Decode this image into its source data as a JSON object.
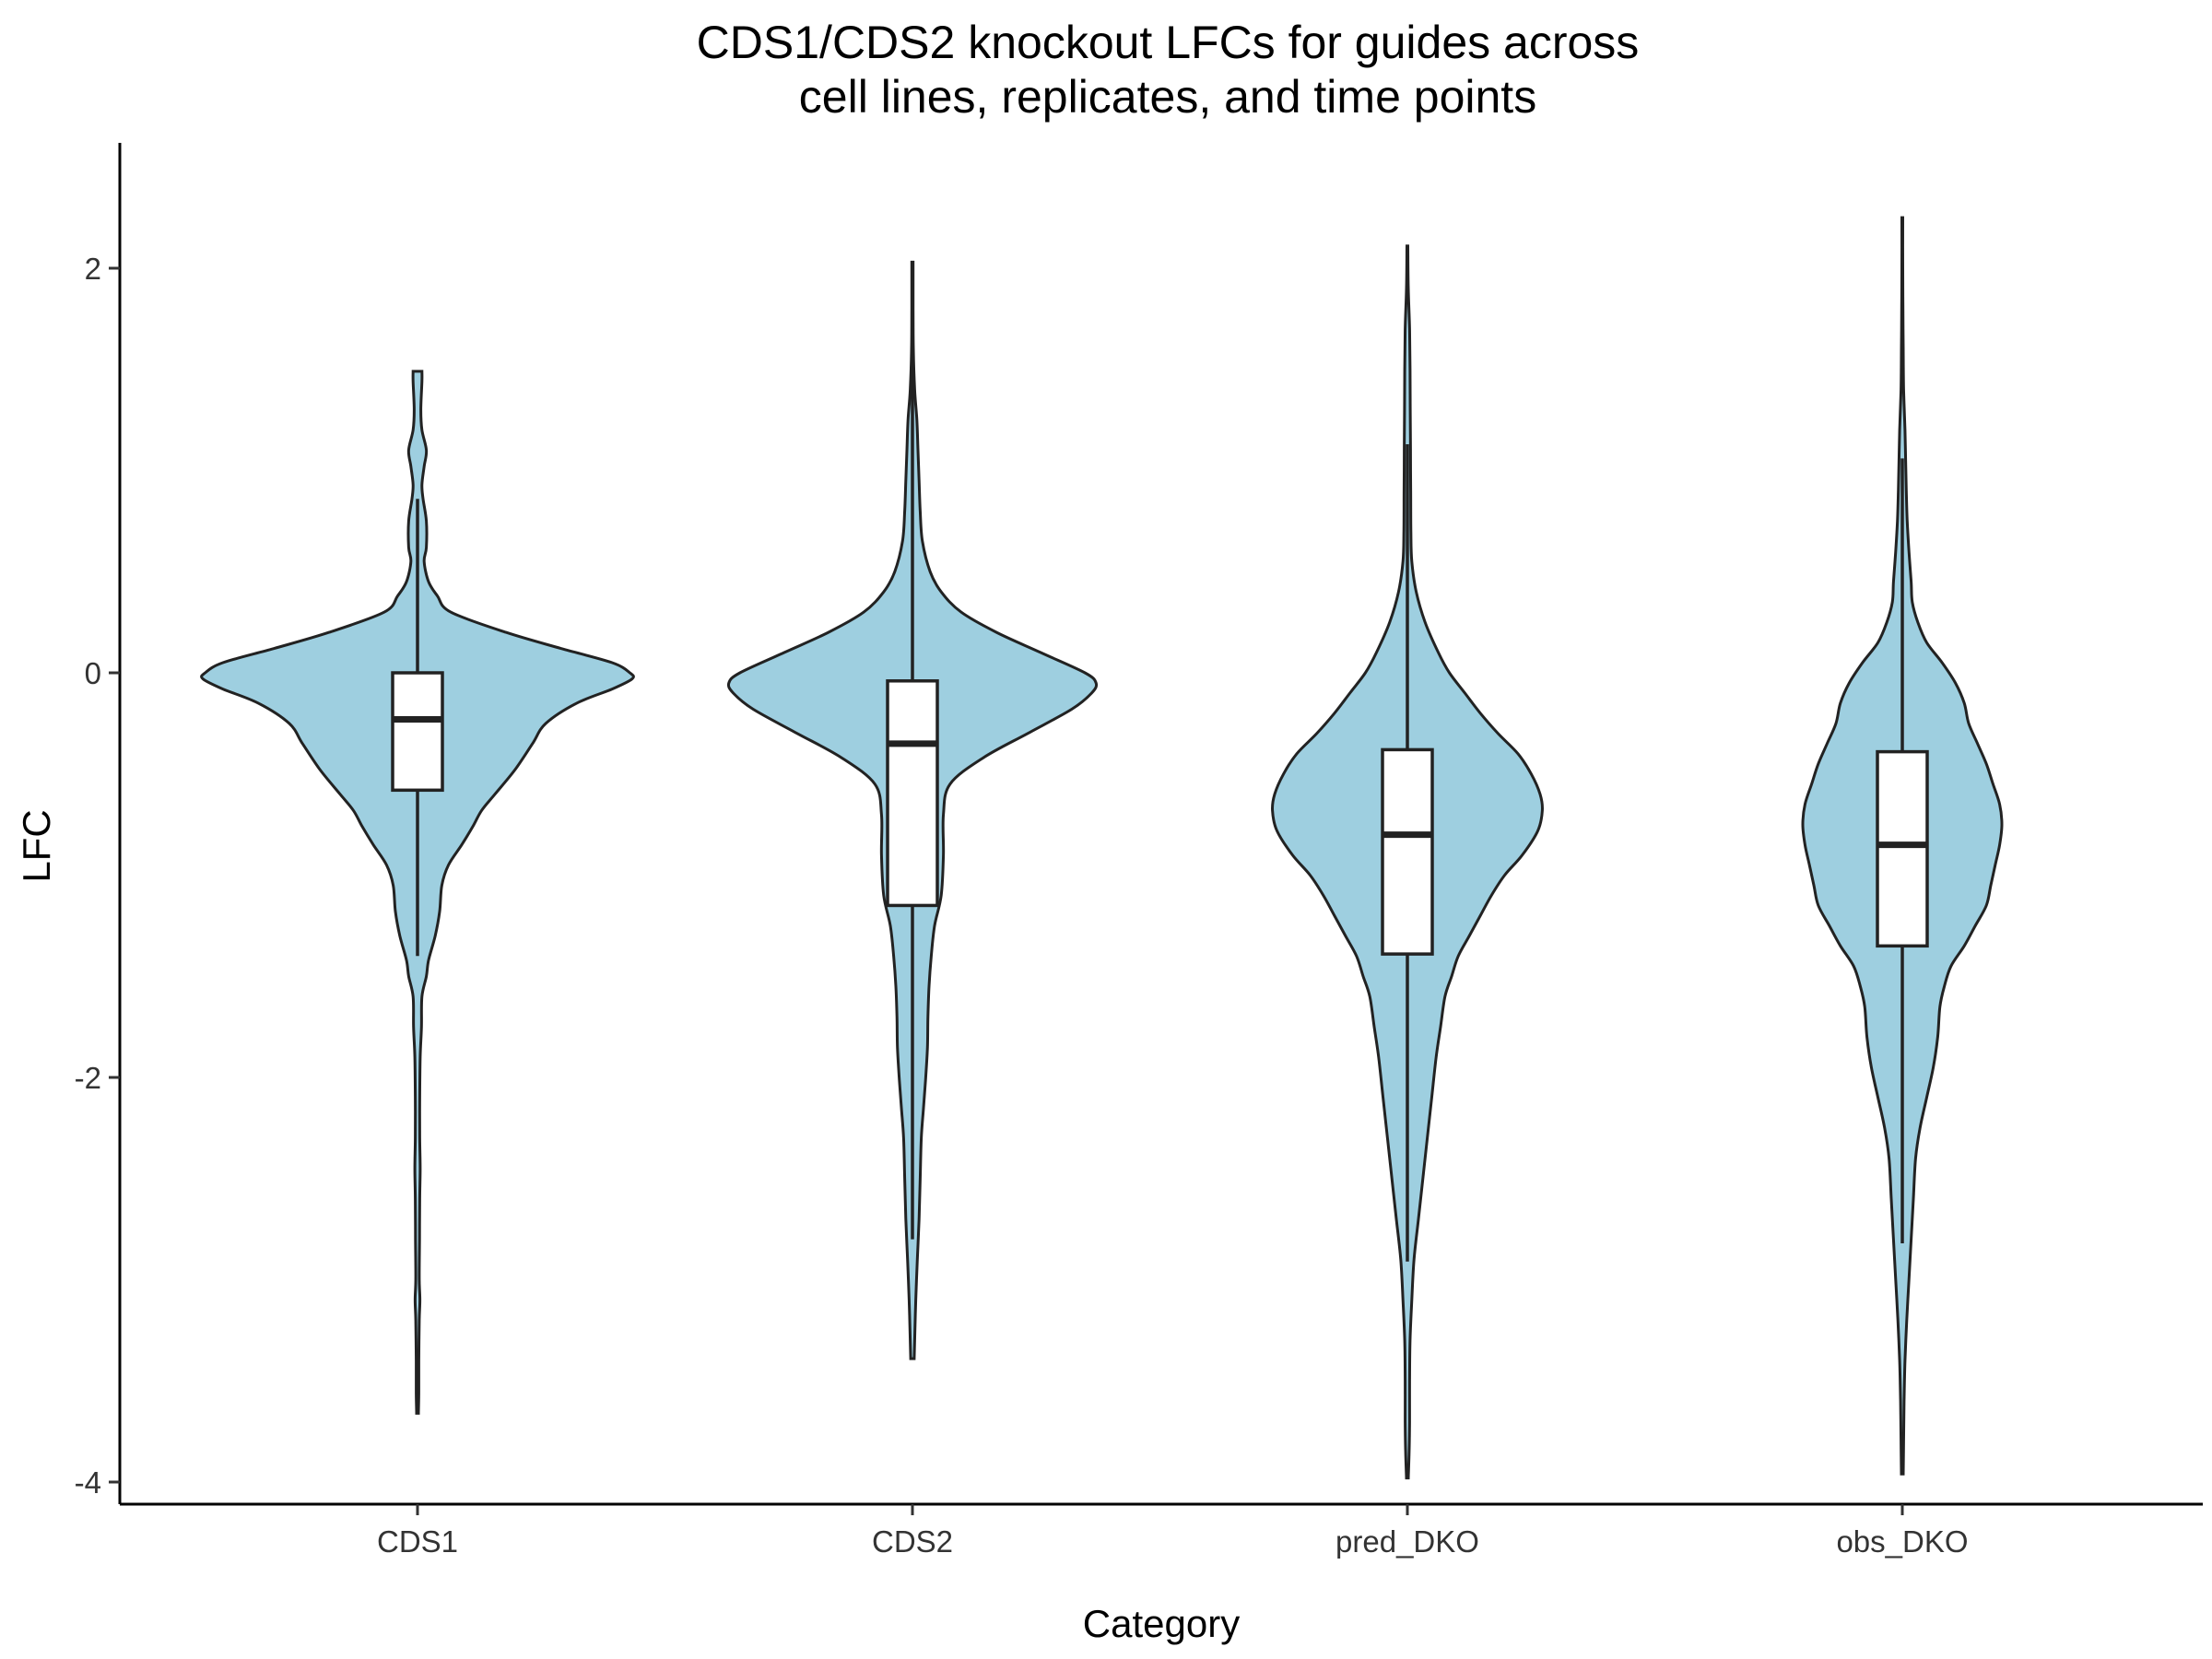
{
  "chart_data": {
    "type": "violin",
    "title_lines": [
      "CDS1/CDS2 knockout LFCs for guides across",
      "cell lines, replicates, and time points"
    ],
    "xlabel": "Category",
    "ylabel": "LFC",
    "ylim": [
      -4.2,
      2.6
    ],
    "y_ticks": [
      2,
      0,
      -2,
      -4
    ],
    "y_tick_labels": [
      "2",
      "0",
      "-2",
      "-4"
    ],
    "categories": [
      "CDS1",
      "CDS2",
      "pred_DKO",
      "obs_DKO"
    ],
    "grid": false,
    "legend": "none",
    "colors": {
      "violin_fill": "#9ecfe0",
      "outline": "#222222",
      "box_fill": "#ffffff"
    },
    "series": [
      {
        "category": "CDS1",
        "box": {
          "q1": -0.58,
          "median": -0.23,
          "q3": 0.0,
          "whisker_low": -1.4,
          "whisker_high": 0.86
        },
        "density": [
          [
            1.49,
            0.02
          ],
          [
            1.44,
            0.02
          ],
          [
            1.3,
            0.015
          ],
          [
            1.2,
            0.02
          ],
          [
            1.1,
            0.04
          ],
          [
            1.02,
            0.03
          ],
          [
            0.93,
            0.02
          ],
          [
            0.86,
            0.025
          ],
          [
            0.75,
            0.04
          ],
          [
            0.62,
            0.04
          ],
          [
            0.55,
            0.03
          ],
          [
            0.45,
            0.05
          ],
          [
            0.38,
            0.09
          ],
          [
            0.3,
            0.15
          ],
          [
            0.2,
            0.4
          ],
          [
            0.12,
            0.65
          ],
          [
            0.05,
            0.88
          ],
          [
            0.0,
            0.96
          ],
          [
            -0.03,
            0.97
          ],
          [
            -0.08,
            0.88
          ],
          [
            -0.15,
            0.72
          ],
          [
            -0.25,
            0.58
          ],
          [
            -0.35,
            0.52
          ],
          [
            -0.48,
            0.44
          ],
          [
            -0.6,
            0.35
          ],
          [
            -0.68,
            0.29
          ],
          [
            -0.76,
            0.25
          ],
          [
            -0.85,
            0.2
          ],
          [
            -0.95,
            0.14
          ],
          [
            -1.05,
            0.11
          ],
          [
            -1.18,
            0.1
          ],
          [
            -1.3,
            0.08
          ],
          [
            -1.42,
            0.05
          ],
          [
            -1.5,
            0.04
          ],
          [
            -1.6,
            0.02
          ],
          [
            -1.75,
            0.018
          ],
          [
            -1.9,
            0.012
          ],
          [
            -2.1,
            0.01
          ],
          [
            -2.3,
            0.01
          ],
          [
            -2.45,
            0.012
          ],
          [
            -2.6,
            0.01
          ],
          [
            -2.8,
            0.009
          ],
          [
            -3.0,
            0.008
          ],
          [
            -3.1,
            0.011
          ],
          [
            -3.2,
            0.008
          ],
          [
            -3.4,
            0.006
          ],
          [
            -3.55,
            0.006
          ],
          [
            -3.66,
            0.004
          ]
        ]
      },
      {
        "category": "CDS2",
        "box": {
          "q1": -1.15,
          "median": -0.35,
          "q3": -0.04,
          "whisker_low": -2.8,
          "whisker_high": 2.03
        },
        "density": [
          [
            2.03,
            0.003
          ],
          [
            1.8,
            0.003
          ],
          [
            1.6,
            0.004
          ],
          [
            1.4,
            0.01
          ],
          [
            1.25,
            0.02
          ],
          [
            1.1,
            0.025
          ],
          [
            0.95,
            0.03
          ],
          [
            0.8,
            0.035
          ],
          [
            0.65,
            0.045
          ],
          [
            0.5,
            0.08
          ],
          [
            0.4,
            0.13
          ],
          [
            0.3,
            0.22
          ],
          [
            0.2,
            0.38
          ],
          [
            0.1,
            0.58
          ],
          [
            0.0,
            0.78
          ],
          [
            -0.05,
            0.83
          ],
          [
            -0.1,
            0.81
          ],
          [
            -0.18,
            0.72
          ],
          [
            -0.3,
            0.52
          ],
          [
            -0.42,
            0.32
          ],
          [
            -0.55,
            0.17
          ],
          [
            -0.7,
            0.14
          ],
          [
            -0.9,
            0.14
          ],
          [
            -1.1,
            0.13
          ],
          [
            -1.25,
            0.1
          ],
          [
            -1.4,
            0.085
          ],
          [
            -1.55,
            0.075
          ],
          [
            -1.7,
            0.07
          ],
          [
            -1.85,
            0.068
          ],
          [
            -2.0,
            0.06
          ],
          [
            -2.15,
            0.05
          ],
          [
            -2.3,
            0.04
          ],
          [
            -2.5,
            0.035
          ],
          [
            -2.7,
            0.03
          ],
          [
            -2.9,
            0.022
          ],
          [
            -3.1,
            0.015
          ],
          [
            -3.3,
            0.01
          ],
          [
            -3.39,
            0.008
          ]
        ]
      },
      {
        "category": "pred_DKO",
        "box": {
          "q1": -1.39,
          "median": -0.8,
          "q3": -0.38,
          "whisker_low": -2.91,
          "whisker_high": 1.13
        },
        "density": [
          [
            2.11,
            0.002
          ],
          [
            1.9,
            0.004
          ],
          [
            1.7,
            0.01
          ],
          [
            1.5,
            0.012
          ],
          [
            1.3,
            0.013
          ],
          [
            1.1,
            0.014
          ],
          [
            0.9,
            0.015
          ],
          [
            0.7,
            0.016
          ],
          [
            0.55,
            0.02
          ],
          [
            0.4,
            0.04
          ],
          [
            0.25,
            0.08
          ],
          [
            0.1,
            0.14
          ],
          [
            0.0,
            0.19
          ],
          [
            -0.1,
            0.26
          ],
          [
            -0.2,
            0.33
          ],
          [
            -0.3,
            0.41
          ],
          [
            -0.4,
            0.5
          ],
          [
            -0.5,
            0.56
          ],
          [
            -0.6,
            0.6
          ],
          [
            -0.68,
            0.61
          ],
          [
            -0.78,
            0.59
          ],
          [
            -0.9,
            0.52
          ],
          [
            -1.0,
            0.44
          ],
          [
            -1.1,
            0.38
          ],
          [
            -1.2,
            0.33
          ],
          [
            -1.3,
            0.28
          ],
          [
            -1.4,
            0.23
          ],
          [
            -1.5,
            0.2
          ],
          [
            -1.6,
            0.17
          ],
          [
            -1.75,
            0.15
          ],
          [
            -1.9,
            0.13
          ],
          [
            -2.1,
            0.11
          ],
          [
            -2.3,
            0.09
          ],
          [
            -2.5,
            0.07
          ],
          [
            -2.7,
            0.05
          ],
          [
            -2.9,
            0.03
          ],
          [
            -3.1,
            0.02
          ],
          [
            -3.3,
            0.012
          ],
          [
            -3.5,
            0.01
          ],
          [
            -3.7,
            0.01
          ],
          [
            -3.85,
            0.008
          ],
          [
            -3.98,
            0.004
          ]
        ]
      },
      {
        "category": "obs_DKO",
        "box": {
          "q1": -1.35,
          "median": -0.85,
          "q3": -0.39,
          "whisker_low": -2.82,
          "whisker_high": 1.06
        },
        "density": [
          [
            2.25,
            0.002
          ],
          [
            2.0,
            0.002
          ],
          [
            1.8,
            0.003
          ],
          [
            1.6,
            0.004
          ],
          [
            1.4,
            0.006
          ],
          [
            1.2,
            0.012
          ],
          [
            1.05,
            0.015
          ],
          [
            0.9,
            0.018
          ],
          [
            0.75,
            0.022
          ],
          [
            0.6,
            0.03
          ],
          [
            0.45,
            0.04
          ],
          [
            0.35,
            0.045
          ],
          [
            0.25,
            0.07
          ],
          [
            0.15,
            0.11
          ],
          [
            0.05,
            0.18
          ],
          [
            -0.05,
            0.24
          ],
          [
            -0.15,
            0.28
          ],
          [
            -0.25,
            0.3
          ],
          [
            -0.35,
            0.34
          ],
          [
            -0.45,
            0.38
          ],
          [
            -0.55,
            0.41
          ],
          [
            -0.65,
            0.44
          ],
          [
            -0.75,
            0.45
          ],
          [
            -0.85,
            0.44
          ],
          [
            -0.95,
            0.42
          ],
          [
            -1.05,
            0.4
          ],
          [
            -1.15,
            0.38
          ],
          [
            -1.25,
            0.33
          ],
          [
            -1.35,
            0.28
          ],
          [
            -1.45,
            0.22
          ],
          [
            -1.55,
            0.19
          ],
          [
            -1.65,
            0.17
          ],
          [
            -1.8,
            0.16
          ],
          [
            -1.95,
            0.14
          ],
          [
            -2.1,
            0.11
          ],
          [
            -2.25,
            0.08
          ],
          [
            -2.4,
            0.06
          ],
          [
            -2.6,
            0.05
          ],
          [
            -2.8,
            0.04
          ],
          [
            -3.0,
            0.03
          ],
          [
            -3.2,
            0.02
          ],
          [
            -3.4,
            0.012
          ],
          [
            -3.6,
            0.008
          ],
          [
            -3.8,
            0.006
          ],
          [
            -3.96,
            0.004
          ]
        ]
      }
    ]
  }
}
